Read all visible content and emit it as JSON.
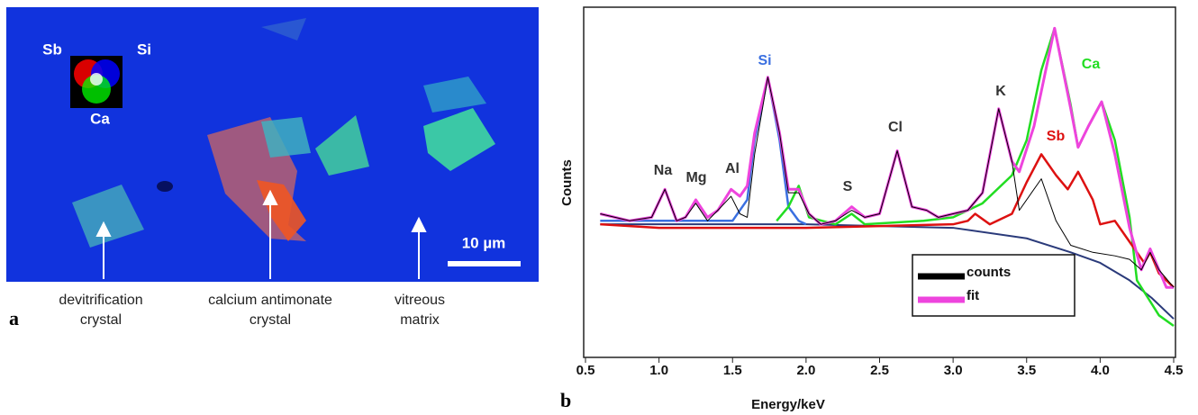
{
  "figure_a": {
    "panel_label": "a",
    "map_labels": [
      "Sb",
      "Si",
      "Ca"
    ],
    "scale_bar": "10 µm",
    "captions": [
      [
        "devitrification",
        "crystal"
      ],
      [
        "calcium antimonate",
        "crystal"
      ],
      [
        "vitreous",
        "matrix"
      ]
    ]
  },
  "chart_data": {
    "type": "line",
    "panel_label": "b",
    "x_label": "Energy/keV",
    "y_label": "Counts",
    "xlim": [
      0.5,
      4.5
    ],
    "ylim": [
      0,
      100
    ],
    "xticks": [
      0.5,
      {
        "value": 1,
        "label": "1.0"
      },
      1.5,
      {
        "value": 2,
        "label": "2.0"
      },
      2.5,
      {
        "value": 3,
        "label": "3.0"
      },
      3.5,
      {
        "value": 4,
        "label": "4.0"
      },
      4.5
    ],
    "legend": "bottom-right",
    "peak_labels": [
      "Na",
      "Mg",
      "Al",
      "S",
      "Cl",
      "K"
    ],
    "background": {
      "color": "#2a3a7a",
      "x": [
        0.6,
        2.0,
        3.0,
        3.5,
        3.8,
        4.0,
        4.2,
        4.35,
        4.5
      ],
      "values": [
        38,
        38,
        37,
        34,
        30,
        27,
        22,
        17,
        11
      ]
    },
    "components": [
      {
        "name": "Si",
        "color": "#3a6fe0",
        "x": [
          0.6,
          1.5,
          1.6,
          1.65,
          1.74,
          1.82,
          1.88,
          1.95,
          2.0
        ],
        "values": [
          39,
          39,
          45,
          62,
          80,
          62,
          43,
          39,
          38
        ]
      },
      {
        "name": "Ca",
        "color": "#22dd22",
        "x": [
          1.8,
          1.88,
          1.95,
          2.02,
          2.2,
          2.31,
          2.4,
          2.8,
          3.0,
          3.2,
          3.4,
          3.5,
          3.6,
          3.69,
          3.8,
          3.85,
          3.92,
          4.01,
          4.1,
          4.2,
          4.25,
          4.4,
          4.5
        ],
        "values": [
          39,
          43,
          49,
          40,
          38,
          41,
          38,
          39,
          40,
          44,
          52,
          62,
          82,
          94,
          72,
          60,
          66,
          73,
          62,
          40,
          22,
          12,
          9
        ]
      },
      {
        "name": "Sb",
        "color": "#dd1111",
        "x": [
          0.6,
          1.0,
          2.0,
          3.0,
          3.1,
          3.15,
          3.25,
          3.4,
          3.5,
          3.6,
          3.7,
          3.78,
          3.85,
          3.95,
          4.0,
          4.1,
          4.2,
          4.3,
          4.34,
          4.4,
          4.5
        ],
        "values": [
          38,
          37,
          37,
          38,
          39,
          41,
          38,
          41,
          50,
          58,
          52,
          48,
          53,
          45,
          38,
          39,
          33,
          27,
          30,
          24,
          20
        ]
      }
    ],
    "series": [
      {
        "name": "fit",
        "color": "#ee44dd",
        "x": [
          0.6,
          0.8,
          0.95,
          1.04,
          1.12,
          1.18,
          1.25,
          1.33,
          1.4,
          1.49,
          1.55,
          1.6,
          1.65,
          1.74,
          1.82,
          1.88,
          1.95,
          2.02,
          2.1,
          2.2,
          2.31,
          2.4,
          2.5,
          2.62,
          2.72,
          2.82,
          2.9,
          3.0,
          3.1,
          3.2,
          3.31,
          3.4,
          3.45,
          3.55,
          3.69,
          3.8,
          3.85,
          3.92,
          4.01,
          4.1,
          4.2,
          4.28,
          4.34,
          4.4,
          4.45,
          4.5
        ],
        "values": [
          41,
          39,
          40,
          48,
          39,
          40,
          45,
          40,
          42,
          48,
          46,
          49,
          64,
          80,
          64,
          48,
          48,
          41,
          38,
          39,
          43,
          40,
          41,
          59,
          43,
          42,
          40,
          41,
          42,
          47,
          71,
          56,
          53,
          66,
          94,
          71,
          60,
          66,
          73,
          58,
          37,
          25,
          31,
          25,
          20,
          20
        ]
      },
      {
        "name": "counts",
        "color": "#000000",
        "x": [
          0.6,
          0.8,
          0.95,
          1.04,
          1.12,
          1.18,
          1.25,
          1.33,
          1.4,
          1.49,
          1.55,
          1.6,
          1.65,
          1.74,
          1.82,
          1.88,
          1.95,
          2.02,
          2.1,
          2.2,
          2.31,
          2.4,
          2.5,
          2.62,
          2.72,
          2.82,
          2.9,
          3.0,
          3.1,
          3.2,
          3.31,
          3.4,
          3.45,
          3.6,
          3.7,
          3.8,
          3.95,
          4.1,
          4.2,
          4.28,
          4.34,
          4.4,
          4.5
        ],
        "values": [
          41,
          39,
          40,
          48,
          39,
          40,
          44,
          39,
          42,
          46,
          41,
          40,
          58,
          80,
          64,
          47,
          47,
          41,
          38,
          39,
          42,
          40,
          41,
          59,
          43,
          42,
          40,
          41,
          42,
          47,
          71,
          56,
          42,
          51,
          39,
          32,
          30,
          29,
          28,
          25,
          30,
          25,
          20
        ]
      }
    ]
  }
}
